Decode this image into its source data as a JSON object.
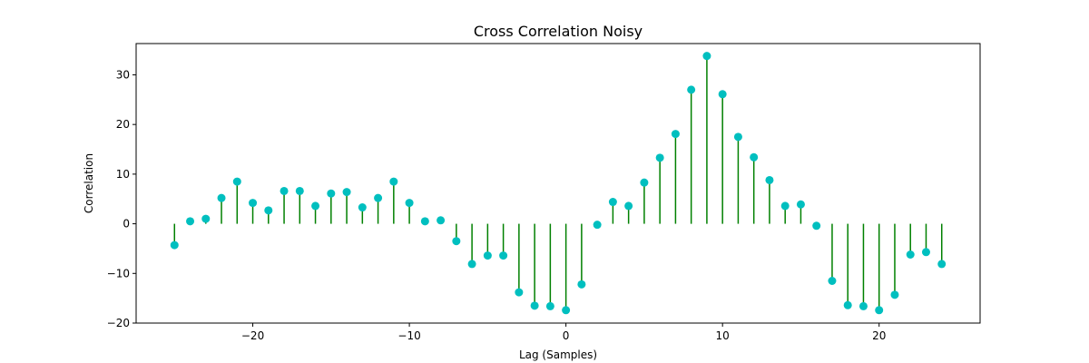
{
  "chart_data": {
    "type": "stem",
    "title": "Cross Correlation Noisy",
    "xlabel": "Lag (Samples)",
    "ylabel": "Correlation",
    "xlim": [
      -27.45,
      26.45
    ],
    "ylim": [
      -20,
      36.3
    ],
    "xticks": [
      -20,
      -10,
      0,
      10,
      20
    ],
    "yticks": [
      -20,
      -10,
      0,
      10,
      20,
      30
    ],
    "grid": false,
    "legend": "none",
    "colors": {
      "stem": "#008000",
      "marker": "#00bfbf",
      "baseline": "#008000"
    },
    "x": [
      -25,
      -24,
      -23,
      -22,
      -21,
      -20,
      -19,
      -18,
      -17,
      -16,
      -15,
      -14,
      -13,
      -12,
      -11,
      -10,
      -9,
      -8,
      -7,
      -6,
      -5,
      -4,
      -3,
      -2,
      -1,
      0,
      1,
      2,
      3,
      4,
      5,
      6,
      7,
      8,
      9,
      10,
      11,
      12,
      13,
      14,
      15,
      16,
      17,
      18,
      19,
      20,
      21,
      22,
      23,
      24
    ],
    "y": [
      -4.3,
      0.5,
      1.0,
      5.2,
      8.5,
      4.2,
      2.7,
      6.6,
      6.6,
      3.6,
      6.1,
      6.4,
      3.3,
      5.2,
      8.5,
      4.2,
      0.5,
      0.7,
      -3.5,
      -8.1,
      -6.4,
      -6.4,
      -13.8,
      -16.5,
      -16.6,
      -17.4,
      -12.2,
      -0.2,
      4.4,
      3.6,
      8.3,
      13.3,
      18.1,
      27.0,
      33.8,
      26.1,
      17.5,
      13.4,
      8.8,
      3.6,
      3.9,
      -0.4,
      -11.5,
      -16.4,
      -16.6,
      -17.4,
      -14.3,
      -6.2,
      -5.7,
      -8.1
    ]
  }
}
